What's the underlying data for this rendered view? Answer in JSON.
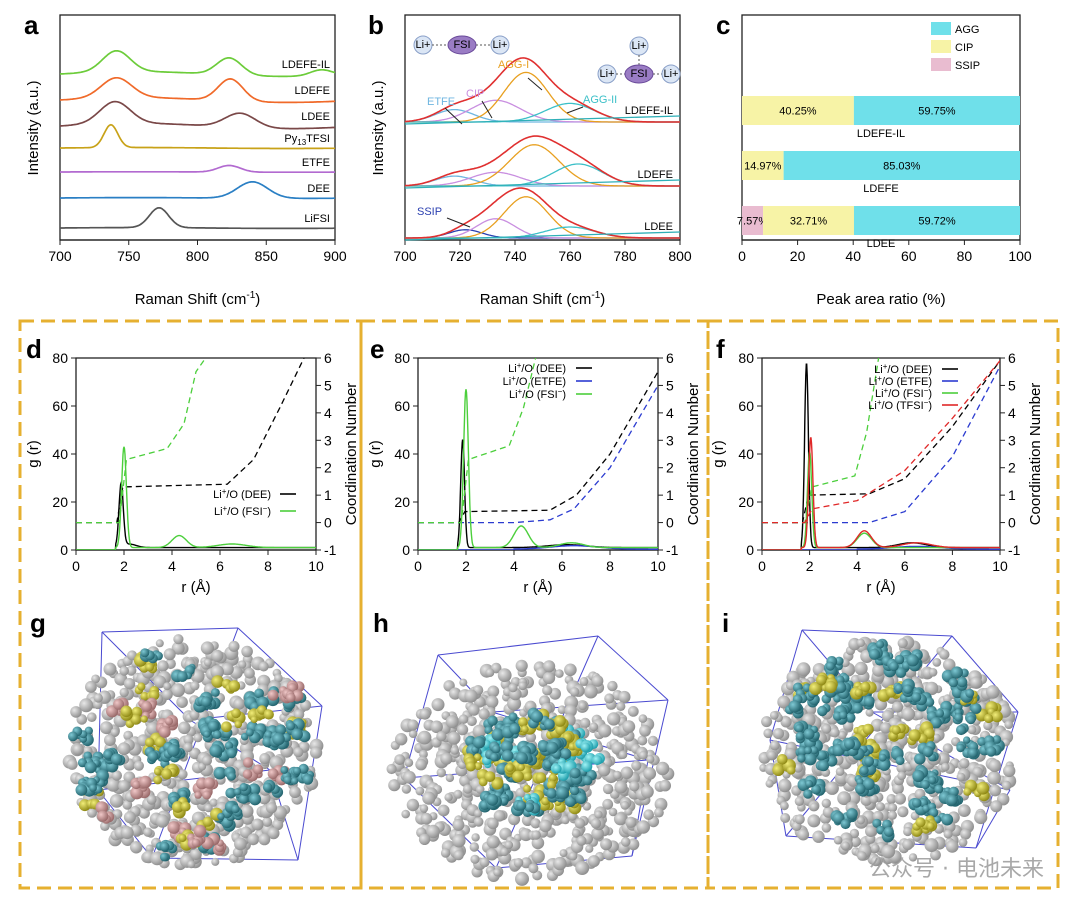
{
  "panel_labels": [
    "a",
    "b",
    "c",
    "d",
    "e",
    "f",
    "g",
    "h",
    "i"
  ],
  "colors": {
    "AGG": "#6fe0ea",
    "CIP": "#f7f3a6",
    "SSIP": "#e9bcd0",
    "frame": "#e6b030"
  },
  "watermark": "公众号 · 电池未来",
  "chart_data": [
    {
      "panel": "a",
      "type": "line",
      "xlabel": "Raman Shift (cm",
      "xlabel_sup": "-1",
      "xlabel_close": ")",
      "ylabel": "Intensity (a.u.)",
      "xlim": [
        700,
        900
      ],
      "xticks": [
        700,
        750,
        800,
        850,
        900
      ],
      "series": [
        {
          "name": "LiFSI",
          "color": "#555555",
          "offset": 0,
          "peaks": [
            [
              772,
              7,
              0.9
            ]
          ]
        },
        {
          "name": "DEE",
          "color": "#2a7fc4",
          "offset": 1,
          "peaks": [
            [
              840,
              11,
              0.75
            ]
          ]
        },
        {
          "name": "ETFE",
          "color": "#b26ad0",
          "offset": 2,
          "peaks": [
            [
              823,
              8,
              0.55
            ]
          ]
        },
        {
          "name": "Py13TFSI",
          "name_base": "Py",
          "name_sub": "13",
          "name_rest": "TFSI",
          "color": "#c8a218",
          "offset": 3,
          "peaks": [
            [
              737,
              5,
              0.95
            ]
          ]
        },
        {
          "name": "LDEE",
          "color": "#7a4848",
          "offset": 4,
          "peaks": [
            [
              740,
              11,
              1.0
            ],
            [
              831,
              11,
              0.65
            ]
          ]
        },
        {
          "name": "LDEFE",
          "color": "#f06a2a",
          "offset": 5,
          "peaks": [
            [
              741,
              11,
              1.0
            ],
            [
              824,
              9,
              1.1
            ]
          ]
        },
        {
          "name": "LDEFE-IL",
          "color": "#6ccc3a",
          "offset": 6,
          "peaks": [
            [
              741,
              10,
              1.05
            ],
            [
              823,
              9,
              0.85
            ],
            [
              890,
              8,
              0.3
            ]
          ]
        }
      ]
    },
    {
      "panel": "b",
      "type": "line",
      "xlabel": "Raman Shift (cm",
      "xlabel_sup": "-1",
      "xlabel_close": ")",
      "ylabel": "Intensity (a.u.)",
      "xlim": [
        700,
        800
      ],
      "xticks": [
        700,
        720,
        740,
        760,
        780,
        800
      ],
      "samples": [
        {
          "name": "LDEFE-IL",
          "offset": 2,
          "components": [
            {
              "label": "ETFE",
              "center": 718,
              "width": 7,
              "amp": 0.2,
              "color": "#6fb6e0"
            },
            {
              "label": "CIP",
              "center": 733,
              "width": 9,
              "amp": 0.35,
              "color": "#c98fe0"
            },
            {
              "label": "AGG-I",
              "center": 744,
              "width": 8,
              "amp": 0.8,
              "color": "#e8a020"
            },
            {
              "label": "AGG-II",
              "center": 760,
              "width": 9,
              "amp": 0.3,
              "color": "#3cc0c8"
            }
          ]
        },
        {
          "name": "LDEFE",
          "offset": 1,
          "components": [
            {
              "label": "",
              "center": 718,
              "width": 7,
              "amp": 0.18,
              "color": "#6fb6e0"
            },
            {
              "label": "",
              "center": 733,
              "width": 9,
              "amp": 0.25,
              "color": "#c98fe0"
            },
            {
              "label": "",
              "center": 747,
              "width": 9,
              "amp": 0.75,
              "color": "#e8a020"
            },
            {
              "label": "",
              "center": 763,
              "width": 9,
              "amp": 0.4,
              "color": "#3cc0c8"
            }
          ]
        },
        {
          "name": "LDEE",
          "offset": 0,
          "components": [
            {
              "label": "SSIP",
              "center": 722,
              "width": 6,
              "amp": 0.15,
              "color": "#2a3fb0"
            },
            {
              "label": "",
              "center": 733,
              "width": 7,
              "amp": 0.35,
              "color": "#c98fe0"
            },
            {
              "label": "",
              "center": 744,
              "width": 8,
              "amp": 0.75,
              "color": "#e8a020"
            },
            {
              "label": "",
              "center": 760,
              "width": 9,
              "amp": 0.2,
              "color": "#3cc0c8"
            }
          ]
        }
      ],
      "peak_labels": [
        "ETFE",
        "CIP",
        "AGG-I",
        "AGG-II",
        "SSIP"
      ],
      "insets": {
        "left": [
          "Li+",
          "FSI",
          "Li+"
        ],
        "right": [
          "Li+",
          "Li+",
          "FSI",
          "Li+"
        ]
      }
    },
    {
      "panel": "c",
      "type": "bar",
      "xlabel": "Peak area ratio (%)",
      "xlim": [
        0,
        100
      ],
      "xticks": [
        0,
        20,
        40,
        60,
        80,
        100
      ],
      "categories": [
        "LDEFE-IL",
        "LDEFE",
        "LDEE"
      ],
      "legend": [
        "AGG",
        "CIP",
        "SSIP"
      ],
      "series": [
        {
          "name": "SSIP",
          "values": [
            0,
            0,
            7.57
          ],
          "labels": [
            "",
            "",
            "7.57%"
          ]
        },
        {
          "name": "CIP",
          "values": [
            40.25,
            14.97,
            32.71
          ],
          "labels": [
            "40.25%",
            "14.97%",
            "32.71%"
          ]
        },
        {
          "name": "AGG",
          "values": [
            59.75,
            85.03,
            59.72
          ],
          "labels": [
            "59.75%",
            "85.03%",
            "59.72%"
          ]
        }
      ]
    },
    {
      "panel": "d",
      "type": "line",
      "xlabel": "r (Å)",
      "ylabel": "g (r)",
      "y2label": "Coordination Number",
      "xlim": [
        0,
        10
      ],
      "ylim": [
        0,
        80
      ],
      "y2lim": [
        -1,
        6
      ],
      "xticks": [
        0,
        2,
        4,
        6,
        8,
        10
      ],
      "yticks": [
        0,
        20,
        40,
        60,
        80
      ],
      "y2ticks": [
        -1,
        0,
        1,
        2,
        3,
        4,
        5,
        6
      ],
      "legend": [
        "Li+/O (DEE)",
        "Li+/O (FSI-)"
      ],
      "series": [
        {
          "name": "Li+/O (DEE)",
          "color": "#000000",
          "rdf": [
            [
              1.88,
              0.09,
              26
            ],
            [
              2.2,
              0.3,
              1.5
            ]
          ],
          "cn": [
            [
              0,
              0
            ],
            [
              1.7,
              0
            ],
            [
              1.95,
              1.3
            ],
            [
              6.3,
              1.4
            ],
            [
              7.4,
              2.3
            ],
            [
              8.5,
              4.2
            ],
            [
              9.5,
              6
            ]
          ]
        },
        {
          "name": "Li+/O (FSI-)",
          "color": "#4ccf3c",
          "rdf": [
            [
              2.0,
              0.1,
              42
            ],
            [
              4.3,
              0.3,
              5
            ],
            [
              6.5,
              0.6,
              1.5
            ]
          ],
          "cn": [
            [
              0,
              0
            ],
            [
              1.8,
              0
            ],
            [
              2.1,
              2.3
            ],
            [
              3.8,
              2.7
            ],
            [
              4.5,
              3.6
            ],
            [
              5.0,
              5.5
            ],
            [
              5.4,
              6
            ]
          ]
        }
      ]
    },
    {
      "panel": "e",
      "type": "line",
      "xlabel": "r (Å)",
      "ylabel": "g (r)",
      "y2label": "Coordination Number",
      "xlim": [
        0,
        10
      ],
      "ylim": [
        0,
        80
      ],
      "y2lim": [
        -1,
        6
      ],
      "xticks": [
        0,
        2,
        4,
        6,
        8,
        10
      ],
      "yticks": [
        0,
        20,
        40,
        60,
        80
      ],
      "y2ticks": [
        -1,
        0,
        1,
        2,
        3,
        4,
        5,
        6
      ],
      "legend": [
        "Li+/O (DEE)",
        "Li+/O (ETFE)",
        "Li+/O (FSI-)"
      ],
      "series": [
        {
          "name": "Li+/O (DEE)",
          "color": "#000000",
          "rdf": [
            [
              1.86,
              0.08,
              45
            ],
            [
              6.2,
              0.8,
              1.2
            ]
          ],
          "cn": [
            [
              0,
              0
            ],
            [
              1.7,
              0
            ],
            [
              1.95,
              0.4
            ],
            [
              5.5,
              0.45
            ],
            [
              6.6,
              1
            ],
            [
              8,
              2.5
            ],
            [
              10,
              5.5
            ]
          ]
        },
        {
          "name": "Li+/O (ETFE)",
          "color": "#2b3bd0",
          "rdf": [
            [
              6.5,
              1.0,
              1.5
            ]
          ],
          "cn": [
            [
              0,
              0
            ],
            [
              4,
              0
            ],
            [
              5.5,
              0.1
            ],
            [
              6.5,
              0.5
            ],
            [
              8,
              2
            ],
            [
              10,
              5
            ]
          ]
        },
        {
          "name": "Li+/O (FSI-)",
          "color": "#4ccf3c",
          "rdf": [
            [
              2.0,
              0.1,
              66
            ],
            [
              4.3,
              0.3,
              9
            ],
            [
              6.4,
              0.5,
              2
            ]
          ],
          "cn": [
            [
              0,
              0
            ],
            [
              1.8,
              0
            ],
            [
              2.1,
              2.3
            ],
            [
              3.8,
              2.8
            ],
            [
              4.4,
              4.2
            ],
            [
              4.9,
              6
            ]
          ]
        }
      ]
    },
    {
      "panel": "f",
      "type": "line",
      "xlabel": "r (Å)",
      "ylabel": "g (r)",
      "y2label": "Coordination Number",
      "xlim": [
        0,
        10
      ],
      "ylim": [
        0,
        80
      ],
      "y2lim": [
        -1,
        6
      ],
      "xticks": [
        0,
        2,
        4,
        6,
        8,
        10
      ],
      "yticks": [
        0,
        20,
        40,
        60,
        80
      ],
      "y2ticks": [
        -1,
        0,
        1,
        2,
        3,
        4,
        5,
        6
      ],
      "legend": [
        "Li+/O (DEE)",
        "Li+/O (ETFE)",
        "Li+/O (FSI-)",
        "Li+/O (TFSI-)"
      ],
      "series": [
        {
          "name": "Li+/O (DEE)",
          "color": "#000000",
          "rdf": [
            [
              1.87,
              0.08,
              77
            ],
            [
              6.3,
              0.6,
              2
            ]
          ],
          "cn": [
            [
              0,
              0
            ],
            [
              1.7,
              0
            ],
            [
              1.95,
              1
            ],
            [
              4.5,
              1.05
            ],
            [
              6,
              1.6
            ],
            [
              8,
              3.5
            ],
            [
              10,
              5.9
            ]
          ]
        },
        {
          "name": "Li+/O (ETFE)",
          "color": "#2b3bd0",
          "rdf": [
            [
              6.5,
              1,
              1.2
            ]
          ],
          "cn": [
            [
              0,
              0
            ],
            [
              4.5,
              0
            ],
            [
              6,
              0.4
            ],
            [
              8,
              2.4
            ],
            [
              10,
              5.7
            ]
          ]
        },
        {
          "name": "Li+/O (FSI-)",
          "color": "#4ccf3c",
          "rdf": [
            [
              2.0,
              0.09,
              40
            ],
            [
              4.3,
              0.3,
              6
            ]
          ],
          "cn": [
            [
              0,
              0
            ],
            [
              1.8,
              0
            ],
            [
              2.1,
              1.3
            ],
            [
              3.9,
              1.7
            ],
            [
              4.4,
              3.3
            ],
            [
              4.9,
              6
            ]
          ]
        },
        {
          "name": "Li+/O (TFSI-)",
          "color": "#e02828",
          "rdf": [
            [
              2.05,
              0.09,
              46
            ],
            [
              4.3,
              0.3,
              7
            ],
            [
              6.5,
              0.6,
              2
            ]
          ],
          "cn": [
            [
              0,
              0
            ],
            [
              1.8,
              0
            ],
            [
              2.1,
              0.5
            ],
            [
              4,
              0.8
            ],
            [
              6,
              1.9
            ],
            [
              8,
              3.8
            ],
            [
              10,
              5.9
            ]
          ]
        }
      ]
    }
  ]
}
